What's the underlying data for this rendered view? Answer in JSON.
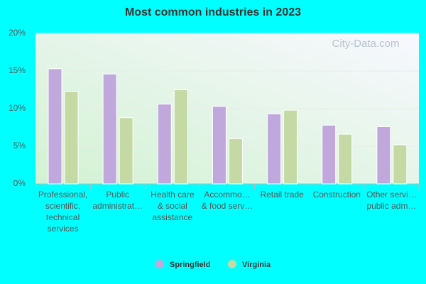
{
  "chart_data": {
    "type": "bar",
    "title": "Most common industries in 2023",
    "watermark": "City-Data.com",
    "categories": [
      [
        "Professional,",
        "scientific,",
        "technical",
        "services"
      ],
      [
        "Public",
        "administrat…"
      ],
      [
        "Health care",
        "& social",
        "assistance"
      ],
      [
        "Accommo…",
        "& food serv…"
      ],
      [
        "Retail trade"
      ],
      [
        "Construction"
      ],
      [
        "Other servi…",
        "public adm…"
      ]
    ],
    "series": [
      {
        "name": "Springfield",
        "color": "#c0a8dc",
        "values": [
          15.3,
          14.6,
          10.6,
          10.3,
          9.3,
          7.8,
          7.6
        ]
      },
      {
        "name": "Virginia",
        "color": "#c5d9a5",
        "values": [
          12.3,
          8.8,
          12.5,
          6.0,
          9.8,
          6.6,
          5.2
        ]
      }
    ],
    "ylim": [
      0,
      20
    ],
    "yticks": [
      {
        "value": 0,
        "label": "0%"
      },
      {
        "value": 5,
        "label": "5%"
      },
      {
        "value": 10,
        "label": "10%"
      },
      {
        "value": 15,
        "label": "15%"
      },
      {
        "value": 20,
        "label": "20%"
      }
    ],
    "grid": true
  }
}
